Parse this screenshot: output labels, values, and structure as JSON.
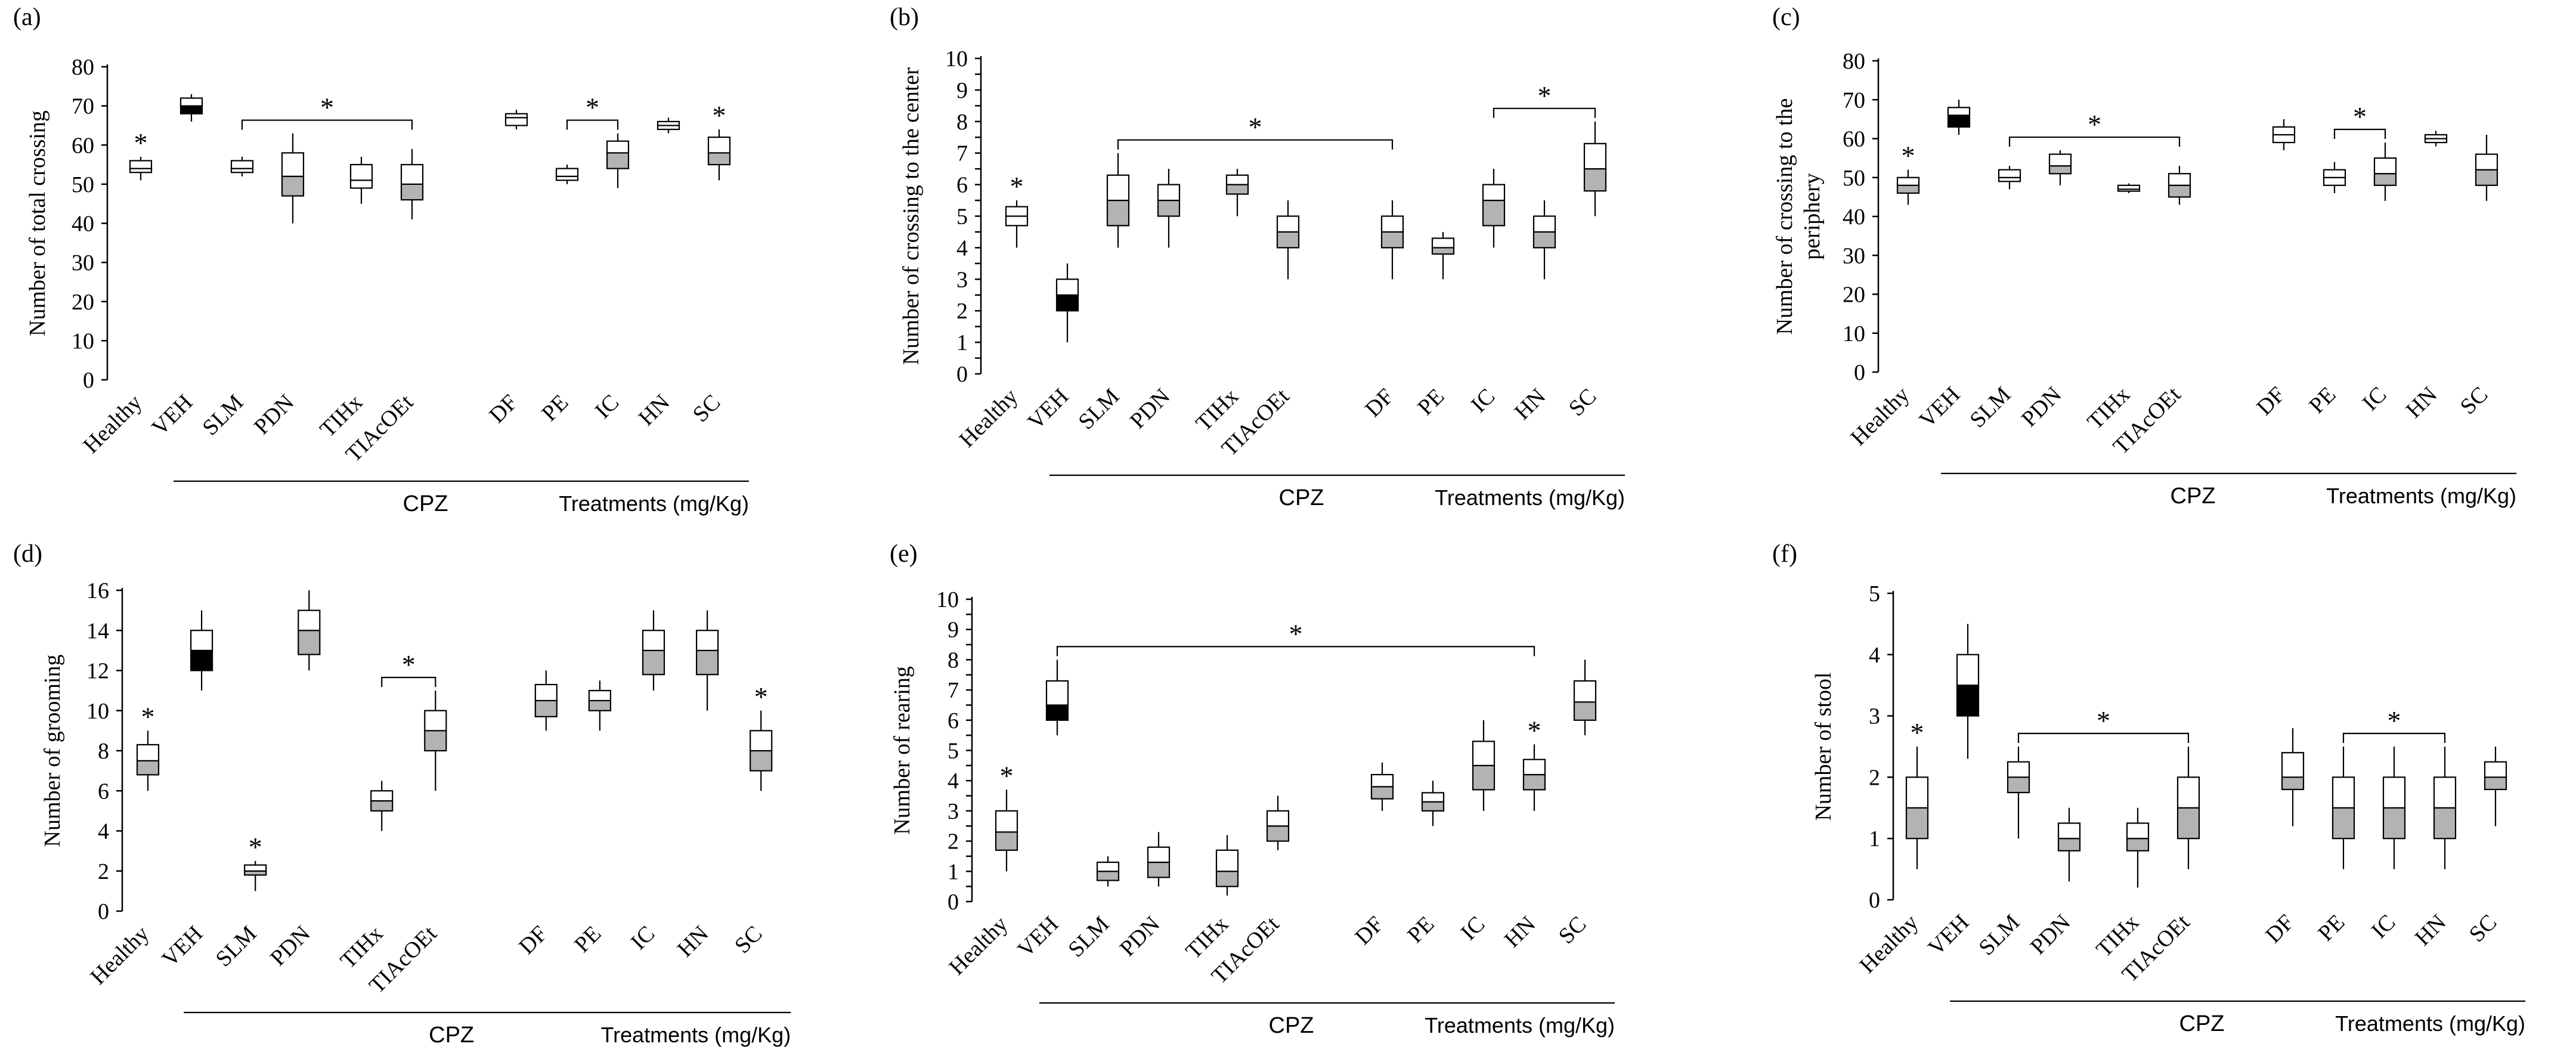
{
  "figure": {
    "colors": {
      "stroke": "#000000",
      "white_fill": "#ffffff",
      "gray_fill": "#b3b3b3",
      "black_fill": "#000000"
    },
    "common": {
      "group_label": "CPZ",
      "treatments_label": "Treatments (mg/Kg)",
      "star": "*"
    }
  },
  "chart_data": [
    {
      "id": "a",
      "panel_label": "(a)",
      "type": "boxplot",
      "ylabel": "Number of total crossing",
      "ylim": [
        0,
        80
      ],
      "yticks": [
        0,
        10,
        20,
        30,
        40,
        50,
        60,
        70,
        80
      ],
      "categories": [
        "Healthy",
        "VEH",
        "SLM",
        "PDN",
        "TIHx",
        "TIAcOEt",
        "DF",
        "PE",
        "IC",
        "HN",
        "SC"
      ],
      "boxes": [
        {
          "min": 51,
          "q1": 53,
          "median": 54,
          "q3": 56,
          "max": 57,
          "lower_fill": "white",
          "upper_fill": "white",
          "star": true
        },
        {
          "min": 66,
          "q1": 68,
          "median": 70,
          "q3": 72,
          "max": 73,
          "lower_fill": "black",
          "upper_fill": "white",
          "star": false
        },
        {
          "min": 52,
          "q1": 53,
          "median": 54,
          "q3": 56,
          "max": 57,
          "lower_fill": "white",
          "upper_fill": "white",
          "star": false
        },
        {
          "min": 40,
          "q1": 47,
          "median": 52,
          "q3": 58,
          "max": 63,
          "lower_fill": "gray",
          "upper_fill": "white",
          "star": false
        },
        {
          "min": 45,
          "q1": 49,
          "median": 51,
          "q3": 55,
          "max": 57,
          "lower_fill": "white",
          "upper_fill": "white",
          "star": false
        },
        {
          "min": 41,
          "q1": 46,
          "median": 50,
          "q3": 55,
          "max": 59,
          "lower_fill": "gray",
          "upper_fill": "white",
          "star": false
        },
        {
          "min": 64,
          "q1": 65,
          "median": 67,
          "q3": 68,
          "max": 69,
          "lower_fill": "white",
          "upper_fill": "white",
          "star": false
        },
        {
          "min": 50,
          "q1": 51,
          "median": 52,
          "q3": 54,
          "max": 55,
          "lower_fill": "white",
          "upper_fill": "white",
          "star": false
        },
        {
          "min": 49,
          "q1": 54,
          "median": 58,
          "q3": 61,
          "max": 63,
          "lower_fill": "gray",
          "upper_fill": "white",
          "star": false
        },
        {
          "min": 63,
          "q1": 64,
          "median": 65,
          "q3": 66,
          "max": 67,
          "lower_fill": "white",
          "upper_fill": "white",
          "star": false
        },
        {
          "min": 51,
          "q1": 55,
          "median": 58,
          "q3": 62,
          "max": 64,
          "lower_fill": "gray",
          "upper_fill": "white",
          "star": true
        }
      ],
      "brackets": [
        {
          "from": 2,
          "to": 5,
          "label": "*"
        },
        {
          "from": 7,
          "to": 8,
          "label": "*"
        }
      ]
    },
    {
      "id": "b",
      "panel_label": "(b)",
      "type": "boxplot",
      "ylabel": "Number of crossing  to the center",
      "ylim": [
        0,
        10
      ],
      "yticks": [
        0,
        0.5,
        1,
        1.5,
        2,
        2.5,
        3,
        3.5,
        4,
        4.5,
        5,
        5.5,
        6,
        6.5,
        7,
        7.5,
        8,
        8.5,
        9,
        9.5,
        10
      ],
      "ytick_labels": [
        "0",
        "",
        "1",
        "",
        "2",
        "",
        "3",
        "",
        "4",
        "",
        "5",
        "",
        "6",
        "",
        "7",
        "",
        "8",
        "",
        "9",
        "",
        "10"
      ],
      "categories": [
        "Healthy",
        "VEH",
        "SLM",
        "PDN",
        "TIHx",
        "TIAcOEt",
        "DF",
        "PE",
        "IC",
        "HN",
        "SC"
      ],
      "boxes": [
        {
          "min": 4,
          "q1": 4.7,
          "median": 5,
          "q3": 5.3,
          "max": 5.5,
          "lower_fill": "white",
          "upper_fill": "white",
          "star": true
        },
        {
          "min": 1,
          "q1": 2,
          "median": 2.5,
          "q3": 3,
          "max": 3.5,
          "lower_fill": "black",
          "upper_fill": "white",
          "star": false
        },
        {
          "min": 4,
          "q1": 4.7,
          "median": 5.5,
          "q3": 6.3,
          "max": 7,
          "lower_fill": "gray",
          "upper_fill": "white",
          "star": false
        },
        {
          "min": 4,
          "q1": 5,
          "median": 5.5,
          "q3": 6,
          "max": 6.5,
          "lower_fill": "gray",
          "upper_fill": "white",
          "star": false
        },
        {
          "min": 5,
          "q1": 5.7,
          "median": 6,
          "q3": 6.3,
          "max": 6.5,
          "lower_fill": "gray",
          "upper_fill": "white",
          "star": false
        },
        {
          "min": 3,
          "q1": 4,
          "median": 4.5,
          "q3": 5,
          "max": 5.5,
          "lower_fill": "gray",
          "upper_fill": "white",
          "star": false
        },
        {
          "min": 3,
          "q1": 4,
          "median": 4.5,
          "q3": 5,
          "max": 5.5,
          "lower_fill": "gray",
          "upper_fill": "white",
          "star": false
        },
        {
          "min": 3,
          "q1": 3.8,
          "median": 4,
          "q3": 4.3,
          "max": 4.5,
          "lower_fill": "gray",
          "upper_fill": "white",
          "star": false
        },
        {
          "min": 4,
          "q1": 4.7,
          "median": 5.5,
          "q3": 6,
          "max": 6.5,
          "lower_fill": "gray",
          "upper_fill": "white",
          "star": false
        },
        {
          "min": 3,
          "q1": 4,
          "median": 4.5,
          "q3": 5,
          "max": 5.5,
          "lower_fill": "gray",
          "upper_fill": "white",
          "star": false
        },
        {
          "min": 5,
          "q1": 5.8,
          "median": 6.5,
          "q3": 7.3,
          "max": 8,
          "lower_fill": "gray",
          "upper_fill": "white",
          "star": false
        }
      ],
      "brackets": [
        {
          "from": 2,
          "to": 6,
          "label": "*"
        },
        {
          "from": 8,
          "to": 10,
          "label": "*"
        }
      ]
    },
    {
      "id": "c",
      "panel_label": "(c)",
      "type": "boxplot",
      "ylabel": "Number of crossing  to the periphery",
      "ylabel_lines": [
        "Number of crossing  to the",
        "periphery"
      ],
      "ylim": [
        0,
        80
      ],
      "yticks": [
        0,
        10,
        20,
        30,
        40,
        50,
        60,
        70,
        80
      ],
      "categories": [
        "Healthy",
        "VEH",
        "SLM",
        "PDN",
        "TIHx",
        "TIAcOEt",
        "DF",
        "PE",
        "IC",
        "HN",
        "SC"
      ],
      "boxes": [
        {
          "min": 43,
          "q1": 46,
          "median": 48,
          "q3": 50,
          "max": 52,
          "lower_fill": "gray",
          "upper_fill": "white",
          "star": true
        },
        {
          "min": 61,
          "q1": 63,
          "median": 66,
          "q3": 68,
          "max": 70,
          "lower_fill": "black",
          "upper_fill": "white",
          "star": false
        },
        {
          "min": 47,
          "q1": 49,
          "median": 50,
          "q3": 52,
          "max": 53,
          "lower_fill": "white",
          "upper_fill": "white",
          "star": false
        },
        {
          "min": 48,
          "q1": 51,
          "median": 53,
          "q3": 56,
          "max": 57,
          "lower_fill": "gray",
          "upper_fill": "white",
          "star": false
        },
        {
          "min": 46,
          "q1": 46.5,
          "median": 47,
          "q3": 48,
          "max": 48.5,
          "lower_fill": "white",
          "upper_fill": "white",
          "star": false
        },
        {
          "min": 43,
          "q1": 45,
          "median": 48,
          "q3": 51,
          "max": 53,
          "lower_fill": "gray",
          "upper_fill": "white",
          "star": false
        },
        {
          "min": 57,
          "q1": 59,
          "median": 61,
          "q3": 63,
          "max": 65,
          "lower_fill": "white",
          "upper_fill": "white",
          "star": false
        },
        {
          "min": 46,
          "q1": 48,
          "median": 50,
          "q3": 52,
          "max": 54,
          "lower_fill": "white",
          "upper_fill": "white",
          "star": false
        },
        {
          "min": 44,
          "q1": 48,
          "median": 51,
          "q3": 55,
          "max": 59,
          "lower_fill": "gray",
          "upper_fill": "white",
          "star": false
        },
        {
          "min": 58,
          "q1": 59,
          "median": 60,
          "q3": 61,
          "max": 62,
          "lower_fill": "white",
          "upper_fill": "white",
          "star": false
        },
        {
          "min": 44,
          "q1": 48,
          "median": 52,
          "q3": 56,
          "max": 61,
          "lower_fill": "gray",
          "upper_fill": "white",
          "star": false
        }
      ],
      "brackets": [
        {
          "from": 2,
          "to": 5,
          "label": "*"
        },
        {
          "from": 7,
          "to": 8,
          "label": "*"
        }
      ]
    },
    {
      "id": "d",
      "panel_label": "(d)",
      "type": "boxplot",
      "ylabel": "Number of grooming",
      "ylim": [
        0,
        16
      ],
      "yticks": [
        0,
        2,
        4,
        6,
        8,
        10,
        12,
        14,
        16
      ],
      "categories": [
        "Healthy",
        "VEH",
        "SLM",
        "PDN",
        "TIHx",
        "TIAcOEt",
        "DF",
        "PE",
        "IC",
        "HN",
        "SC"
      ],
      "boxes": [
        {
          "min": 6,
          "q1": 6.8,
          "median": 7.5,
          "q3": 8.3,
          "max": 9,
          "lower_fill": "gray",
          "upper_fill": "white",
          "star": true
        },
        {
          "min": 11,
          "q1": 12,
          "median": 13,
          "q3": 14,
          "max": 15,
          "lower_fill": "black",
          "upper_fill": "white",
          "star": false
        },
        {
          "min": 1,
          "q1": 1.8,
          "median": 2,
          "q3": 2.3,
          "max": 2.5,
          "lower_fill": "gray",
          "upper_fill": "white",
          "star": true
        },
        {
          "min": 12,
          "q1": 12.8,
          "median": 14,
          "q3": 15,
          "max": 16,
          "lower_fill": "gray",
          "upper_fill": "white",
          "star": false
        },
        {
          "min": 4,
          "q1": 5,
          "median": 5.5,
          "q3": 6,
          "max": 6.5,
          "lower_fill": "gray",
          "upper_fill": "white",
          "star": false
        },
        {
          "min": 6,
          "q1": 8,
          "median": 9,
          "q3": 10,
          "max": 11,
          "lower_fill": "gray",
          "upper_fill": "white",
          "star": false
        },
        {
          "min": 9,
          "q1": 9.7,
          "median": 10.5,
          "q3": 11.3,
          "max": 12,
          "lower_fill": "gray",
          "upper_fill": "white",
          "star": false
        },
        {
          "min": 9,
          "q1": 10,
          "median": 10.5,
          "q3": 11,
          "max": 11.5,
          "lower_fill": "gray",
          "upper_fill": "white",
          "star": false
        },
        {
          "min": 11,
          "q1": 11.8,
          "median": 13,
          "q3": 14,
          "max": 15,
          "lower_fill": "gray",
          "upper_fill": "white",
          "star": false
        },
        {
          "min": 10,
          "q1": 11.8,
          "median": 13,
          "q3": 14,
          "max": 15,
          "lower_fill": "gray",
          "upper_fill": "white",
          "star": false
        },
        {
          "min": 6,
          "q1": 7,
          "median": 8,
          "q3": 9,
          "max": 10,
          "lower_fill": "gray",
          "upper_fill": "white",
          "star": true
        }
      ],
      "brackets": [
        {
          "from": 4,
          "to": 5,
          "label": "*"
        }
      ]
    },
    {
      "id": "e",
      "panel_label": "(e)",
      "type": "boxplot",
      "ylabel": "Number of rearing",
      "ylim": [
        0,
        10
      ],
      "yticks": [
        0,
        0.5,
        1,
        1.5,
        2,
        2.5,
        3,
        3.5,
        4,
        4.5,
        5,
        5.5,
        6,
        6.5,
        7,
        7.5,
        8,
        8.5,
        9,
        9.5,
        10
      ],
      "ytick_labels": [
        "0",
        "",
        "1",
        "",
        "2",
        "",
        "3",
        "",
        "4",
        "",
        "5",
        "",
        "6",
        "",
        "7",
        "",
        "8",
        "",
        "9",
        "",
        "10"
      ],
      "categories": [
        "Healthy",
        "VEH",
        "SLM",
        "PDN",
        "TIHx",
        "TIAcOEt",
        "DF",
        "PE",
        "IC",
        "HN",
        "SC"
      ],
      "boxes": [
        {
          "min": 1,
          "q1": 1.7,
          "median": 2.3,
          "q3": 3,
          "max": 3.7,
          "lower_fill": "gray",
          "upper_fill": "white",
          "star": true
        },
        {
          "min": 5.5,
          "q1": 6,
          "median": 6.5,
          "q3": 7.3,
          "max": 8,
          "lower_fill": "black",
          "upper_fill": "white",
          "star": false
        },
        {
          "min": 0.5,
          "q1": 0.7,
          "median": 1,
          "q3": 1.3,
          "max": 1.5,
          "lower_fill": "gray",
          "upper_fill": "white",
          "star": false
        },
        {
          "min": 0.5,
          "q1": 0.8,
          "median": 1.3,
          "q3": 1.8,
          "max": 2.3,
          "lower_fill": "gray",
          "upper_fill": "white",
          "star": false
        },
        {
          "min": 0.2,
          "q1": 0.5,
          "median": 1,
          "q3": 1.7,
          "max": 2.2,
          "lower_fill": "gray",
          "upper_fill": "white",
          "star": false
        },
        {
          "min": 1.7,
          "q1": 2,
          "median": 2.5,
          "q3": 3,
          "max": 3.5,
          "lower_fill": "gray",
          "upper_fill": "white",
          "star": false
        },
        {
          "min": 3,
          "q1": 3.4,
          "median": 3.8,
          "q3": 4.2,
          "max": 4.6,
          "lower_fill": "gray",
          "upper_fill": "white",
          "star": false
        },
        {
          "min": 2.5,
          "q1": 3,
          "median": 3.3,
          "q3": 3.6,
          "max": 4,
          "lower_fill": "gray",
          "upper_fill": "white",
          "star": false
        },
        {
          "min": 3,
          "q1": 3.7,
          "median": 4.5,
          "q3": 5.3,
          "max": 6,
          "lower_fill": "gray",
          "upper_fill": "white",
          "star": false
        },
        {
          "min": 3,
          "q1": 3.7,
          "median": 4.2,
          "q3": 4.7,
          "max": 5.2,
          "lower_fill": "gray",
          "upper_fill": "white",
          "star": true
        },
        {
          "min": 5.5,
          "q1": 6,
          "median": 6.6,
          "q3": 7.3,
          "max": 8,
          "lower_fill": "gray",
          "upper_fill": "white",
          "star": false
        }
      ],
      "brackets": [
        {
          "from": 1,
          "to": 9,
          "label": "*"
        }
      ]
    },
    {
      "id": "f",
      "panel_label": "(f)",
      "type": "boxplot",
      "ylabel": "Number of stool",
      "ylim": [
        0,
        5
      ],
      "yticks": [
        0,
        1,
        2,
        3,
        4,
        5
      ],
      "categories": [
        "Healthy",
        "VEH",
        "SLM",
        "PDN",
        "TIHx",
        "TIAcOEt",
        "DF",
        "PE",
        "IC",
        "HN",
        "SC"
      ],
      "boxes": [
        {
          "min": 0.5,
          "q1": 1,
          "median": 1.5,
          "q3": 2,
          "max": 2.5,
          "lower_fill": "gray",
          "upper_fill": "white",
          "star": true
        },
        {
          "min": 2.3,
          "q1": 3,
          "median": 3.5,
          "q3": 4,
          "max": 4.5,
          "lower_fill": "black",
          "upper_fill": "white",
          "star": false
        },
        {
          "min": 1,
          "q1": 1.75,
          "median": 2,
          "q3": 2.25,
          "max": 2.5,
          "lower_fill": "gray",
          "upper_fill": "white",
          "star": false
        },
        {
          "min": 0.3,
          "q1": 0.8,
          "median": 1,
          "q3": 1.25,
          "max": 1.5,
          "lower_fill": "gray",
          "upper_fill": "white",
          "star": false
        },
        {
          "min": 0.2,
          "q1": 0.8,
          "median": 1,
          "q3": 1.25,
          "max": 1.5,
          "lower_fill": "gray",
          "upper_fill": "white",
          "star": false
        },
        {
          "min": 0.5,
          "q1": 1,
          "median": 1.5,
          "q3": 2,
          "max": 2.5,
          "lower_fill": "gray",
          "upper_fill": "white",
          "star": false
        },
        {
          "min": 1.2,
          "q1": 1.8,
          "median": 2,
          "q3": 2.4,
          "max": 2.8,
          "lower_fill": "gray",
          "upper_fill": "white",
          "star": false
        },
        {
          "min": 0.5,
          "q1": 1,
          "median": 1.5,
          "q3": 2,
          "max": 2.5,
          "lower_fill": "gray",
          "upper_fill": "white",
          "star": false
        },
        {
          "min": 0.5,
          "q1": 1,
          "median": 1.5,
          "q3": 2,
          "max": 2.5,
          "lower_fill": "gray",
          "upper_fill": "white",
          "star": false
        },
        {
          "min": 0.5,
          "q1": 1,
          "median": 1.5,
          "q3": 2,
          "max": 2.5,
          "lower_fill": "gray",
          "upper_fill": "white",
          "star": false
        },
        {
          "min": 1.2,
          "q1": 1.8,
          "median": 2,
          "q3": 2.25,
          "max": 2.5,
          "lower_fill": "gray",
          "upper_fill": "white",
          "star": false
        }
      ],
      "brackets": [
        {
          "from": 2,
          "to": 5,
          "label": "*"
        },
        {
          "from": 7,
          "to": 9,
          "label": "*"
        }
      ]
    }
  ]
}
